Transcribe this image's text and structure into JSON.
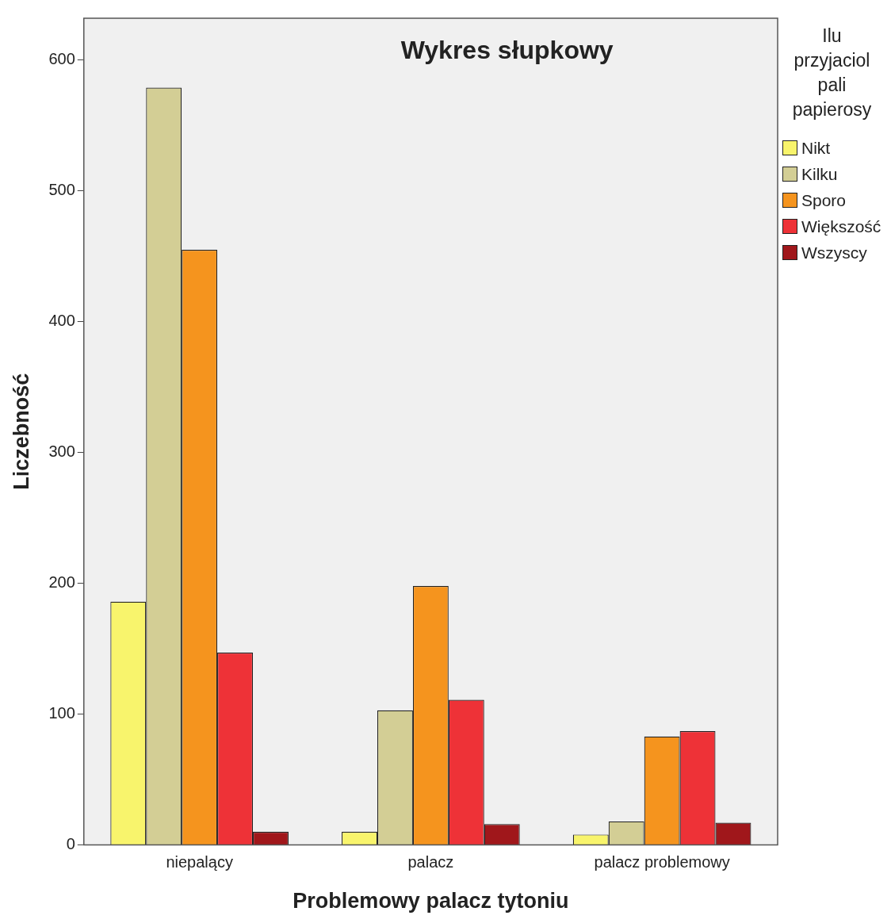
{
  "chart_data": {
    "type": "bar",
    "title": "Wykres słupkowy",
    "xlabel": "Problemowy palacz tytoniu",
    "ylabel": "Liczebność",
    "legend_title": "Ilu przyjaciol pali papierosy",
    "legend": "right",
    "categories": [
      "niepalący",
      "palacz",
      "palacz problemowy"
    ],
    "series": [
      {
        "name": "Nikt",
        "color": "#f8f46c",
        "values": [
          186,
          10,
          8
        ]
      },
      {
        "name": "Kilku",
        "color": "#d3ce95",
        "values": [
          579,
          103,
          18
        ]
      },
      {
        "name": "Sporo",
        "color": "#f5941e",
        "values": [
          455,
          198,
          83
        ]
      },
      {
        "name": "Większość",
        "color": "#ee3237",
        "values": [
          147,
          111,
          87
        ]
      },
      {
        "name": "Wszyscy",
        "color": "#a0171b",
        "values": [
          10,
          16,
          17
        ]
      }
    ],
    "ylim": [
      0,
      632
    ],
    "yticks": [
      0,
      100,
      200,
      300,
      400,
      500,
      600
    ],
    "grid": false
  }
}
